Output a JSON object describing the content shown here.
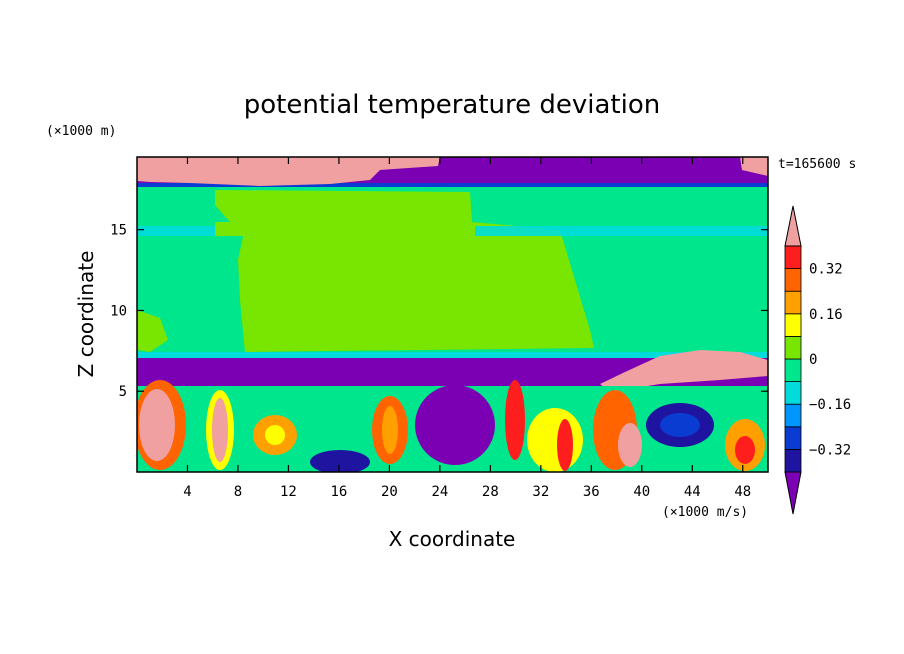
{
  "chart_data": {
    "type": "heatmap",
    "title": "potential temperature deviation",
    "xlabel": "X coordinate",
    "ylabel": "Z coordinate",
    "x_unit": "(×1000 m/s)",
    "y_unit": "(×1000 m)",
    "time_label": "t=165600 s",
    "xlim": [
      0,
      50
    ],
    "ylim": [
      0,
      19.5
    ],
    "x_ticks": [
      4,
      8,
      12,
      16,
      20,
      24,
      28,
      32,
      36,
      40,
      44,
      48
    ],
    "y_ticks": [
      5,
      10,
      15
    ],
    "colorbar": {
      "labels": [
        "0.32",
        "0.16",
        "0",
        "−0.16",
        "−0.32"
      ],
      "label_values": [
        0.32,
        0.16,
        0,
        -0.16,
        -0.32
      ],
      "levels": [
        -0.4,
        -0.32,
        -0.24,
        -0.16,
        -0.08,
        0,
        0.08,
        0.16,
        0.24,
        0.32,
        0.4
      ],
      "colors": [
        "#7b00b4",
        "#1e14a0",
        "#0a3cd2",
        "#0096ff",
        "#00dcdc",
        "#00e68c",
        "#78e600",
        "#ffff00",
        "#ffa000",
        "#ff6400",
        "#ff1e1e",
        "#f0a0a0"
      ],
      "extend": "both"
    }
  }
}
